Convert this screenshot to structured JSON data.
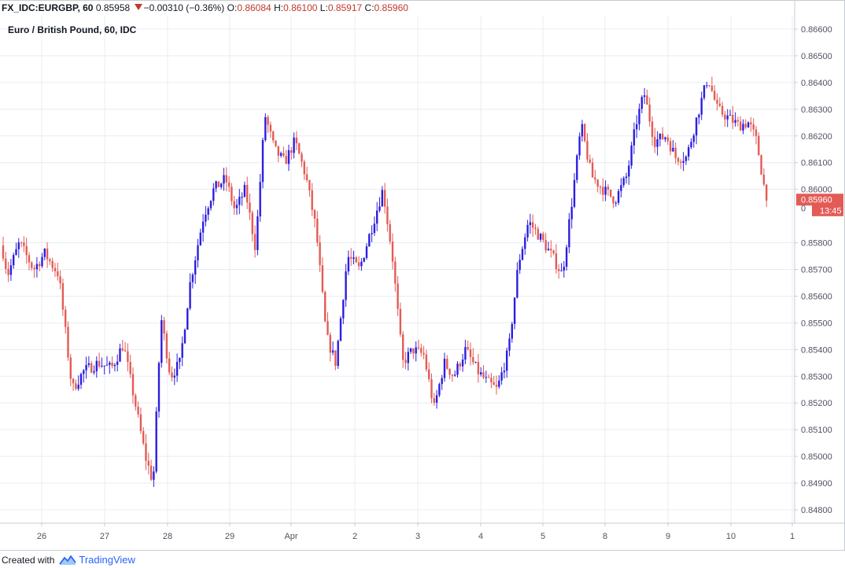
{
  "header": {
    "symbol": "FX_IDC:EURGBP, 60",
    "last": "0.85958",
    "change": "−0.00310 (−0.36%)",
    "o_label": "O:",
    "o_value": "0.86084",
    "h_label": "H:",
    "h_value": "0.86100",
    "l_label": "L:",
    "l_value": "0.85917",
    "c_label": "C:",
    "c_value": "0.85960"
  },
  "chart_title": "Euro / British Pound, 60, IDC",
  "footer": {
    "created_with": "Created with",
    "brand": "TradingView",
    "brand_icon": "tradingview-logo-icon"
  },
  "colors": {
    "up": "#2b1ee0",
    "down": "#e35b56",
    "grid": "#e8ecf3",
    "axis": "#c7cbd3",
    "last_price_bg": "#e35b56"
  },
  "chart_data": {
    "type": "candlestick",
    "title": "Euro / British Pound, 60, IDC",
    "ylim": [
      0.8475,
      0.8665
    ],
    "y_ticks": [
      "0.86600",
      "0.86500",
      "0.86400",
      "0.86300",
      "0.86200",
      "0.86100",
      "0.86000",
      "0.85800",
      "0.85700",
      "0.85600",
      "0.85500",
      "0.85400",
      "0.85300",
      "0.85200",
      "0.85100",
      "0.85000",
      "0.84900",
      "0.84800"
    ],
    "y_tick_values": [
      0.866,
      0.865,
      0.864,
      0.863,
      0.862,
      0.861,
      0.86,
      0.858,
      0.857,
      0.856,
      0.855,
      0.854,
      0.853,
      0.852,
      0.851,
      0.85,
      0.849,
      0.848
    ],
    "x_ticks": [
      "26",
      "27",
      "28",
      "29",
      "Apr",
      "2",
      "3",
      "4",
      "5",
      "8",
      "9",
      "10",
      "1"
    ],
    "last_price_label": "0.85960",
    "last_price": 0.8596,
    "countdown_label": "13:45",
    "countdown_price": 0.8593,
    "truncated_label": "0",
    "path_start": 0.8579,
    "path_end": 0.85958,
    "path": [
      [
        0,
        0.8587
      ],
      [
        13,
        0.8568
      ],
      [
        28,
        0.858
      ],
      [
        46,
        0.857
      ],
      [
        60,
        0.8576
      ],
      [
        78,
        0.8568
      ],
      [
        95,
        0.8525
      ],
      [
        110,
        0.8532
      ],
      [
        128,
        0.8535
      ],
      [
        145,
        0.8533
      ],
      [
        160,
        0.8542
      ],
      [
        175,
        0.852
      ],
      [
        188,
        0.85
      ],
      [
        198,
        0.849
      ],
      [
        208,
        0.8552
      ],
      [
        220,
        0.853
      ],
      [
        232,
        0.8535
      ],
      [
        245,
        0.8565
      ],
      [
        262,
        0.859
      ],
      [
        275,
        0.86
      ],
      [
        290,
        0.8604
      ],
      [
        302,
        0.8592
      ],
      [
        315,
        0.86
      ],
      [
        328,
        0.8578
      ],
      [
        340,
        0.8628
      ],
      [
        352,
        0.8615
      ],
      [
        365,
        0.861
      ],
      [
        378,
        0.8618
      ],
      [
        392,
        0.8605
      ],
      [
        405,
        0.8585
      ],
      [
        418,
        0.8545
      ],
      [
        430,
        0.8535
      ],
      [
        445,
        0.8575
      ],
      [
        460,
        0.857
      ],
      [
        475,
        0.8585
      ],
      [
        490,
        0.86
      ],
      [
        502,
        0.8575
      ],
      [
        515,
        0.8535
      ],
      [
        528,
        0.854
      ],
      [
        542,
        0.8538
      ],
      [
        555,
        0.8518
      ],
      [
        568,
        0.8535
      ],
      [
        580,
        0.853
      ],
      [
        595,
        0.854
      ],
      [
        610,
        0.8532
      ],
      [
        622,
        0.8528
      ],
      [
        635,
        0.8525
      ],
      [
        650,
        0.854
      ],
      [
        662,
        0.8572
      ],
      [
        675,
        0.8588
      ],
      [
        690,
        0.8582
      ],
      [
        705,
        0.8575
      ],
      [
        718,
        0.8568
      ],
      [
        730,
        0.8595
      ],
      [
        742,
        0.8624
      ],
      [
        755,
        0.8605
      ],
      [
        770,
        0.86
      ],
      [
        785,
        0.8596
      ],
      [
        800,
        0.8605
      ],
      [
        812,
        0.8625
      ],
      [
        822,
        0.8636
      ],
      [
        835,
        0.8618
      ],
      [
        850,
        0.862
      ],
      [
        862,
        0.8612
      ],
      [
        876,
        0.8612
      ],
      [
        890,
        0.8628
      ],
      [
        903,
        0.8642
      ],
      [
        915,
        0.863
      ],
      [
        928,
        0.8627
      ],
      [
        942,
        0.8624
      ],
      [
        955,
        0.8625
      ],
      [
        965,
        0.8618
      ],
      [
        975,
        0.86
      ]
    ]
  }
}
